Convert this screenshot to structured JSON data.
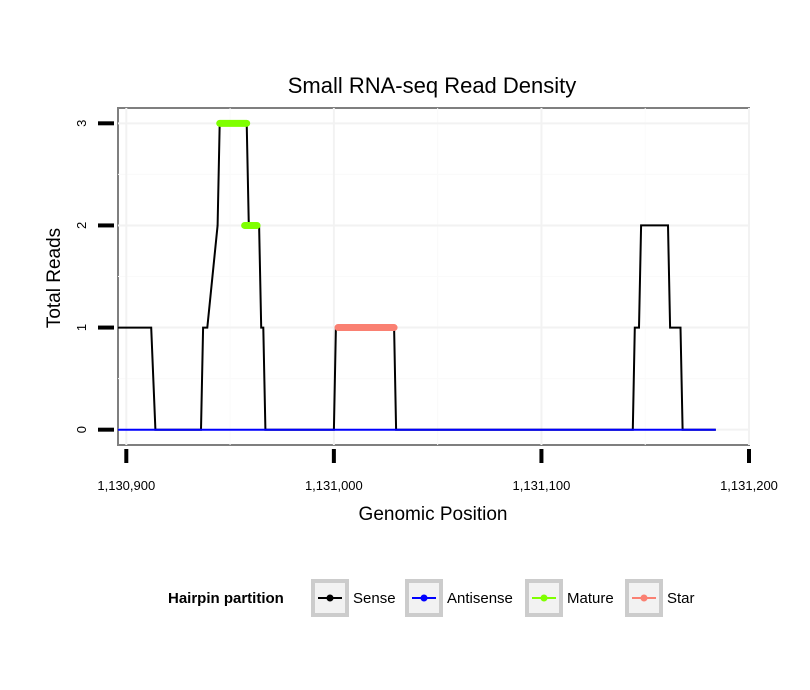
{
  "chart_data": {
    "type": "line",
    "title": "Small RNA-seq Read Density",
    "xlabel": "Genomic Position",
    "ylabel": "Total Reads",
    "xlim": [
      1130896,
      1131200
    ],
    "ylim": [
      -0.15,
      3.15
    ],
    "x_ticks": [
      1130900,
      1131000,
      1131100,
      1131200
    ],
    "x_tick_labels": [
      "1,130,900",
      "1,131,000",
      "1,131,100",
      "1,131,200"
    ],
    "y_ticks": [
      0,
      1,
      2,
      3
    ],
    "y_tick_labels": [
      "0",
      "1",
      "2",
      "3"
    ],
    "grid": true,
    "legend": {
      "title": "Hairpin partition",
      "position": "bottom",
      "entries": [
        {
          "name": "Sense",
          "color": "#000000"
        },
        {
          "name": "Antisense",
          "color": "#0000ff"
        },
        {
          "name": "Mature",
          "color": "#7fff00"
        },
        {
          "name": "Star",
          "color": "#fa8072"
        }
      ]
    },
    "series": [
      {
        "name": "Sense",
        "color": "#000000",
        "width": 2,
        "x": [
          1130896,
          1130912,
          1130914,
          1130936,
          1130937,
          1130939,
          1130944,
          1130945,
          1130946,
          1130958,
          1130959,
          1130964,
          1130965,
          1130966,
          1130967,
          1130968,
          1131000,
          1131001,
          1131029,
          1131030,
          1131144,
          1131145,
          1131147,
          1131148,
          1131161,
          1131162,
          1131167,
          1131168,
          1131169,
          1131184
        ],
        "y": [
          1,
          1,
          0,
          0,
          1,
          1,
          2,
          3,
          3,
          3,
          2,
          2,
          1,
          1,
          0,
          0,
          0,
          1,
          1,
          0,
          0,
          1,
          1,
          2,
          2,
          1,
          1,
          0,
          0,
          0
        ]
      },
      {
        "name": "Antisense",
        "color": "#0000ff",
        "width": 2,
        "x": [
          1130896,
          1131184
        ],
        "y": [
          0,
          0
        ]
      },
      {
        "name": "Mature",
        "color": "#7fff00",
        "width": 7,
        "segments": [
          {
            "x": [
              1130945,
              1130958
            ],
            "y": [
              3,
              3
            ]
          },
          {
            "x": [
              1130957,
              1130963
            ],
            "y": [
              2,
              2
            ]
          }
        ]
      },
      {
        "name": "Star",
        "color": "#fa8072",
        "width": 7,
        "segments": [
          {
            "x": [
              1131002,
              1131029
            ],
            "y": [
              1,
              1
            ]
          }
        ]
      }
    ]
  }
}
